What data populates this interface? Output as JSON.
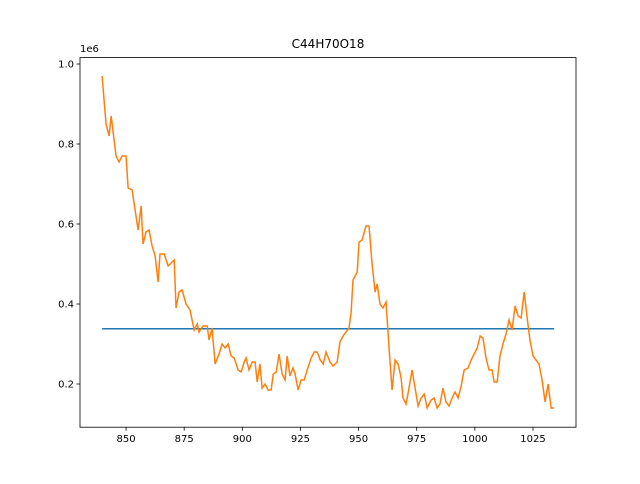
{
  "chart_data": {
    "type": "line",
    "title": "C44H70O18",
    "y_offset_label": "1e6",
    "xlim": [
      830.2,
      1043.5
    ],
    "xticks": [
      850,
      875,
      900,
      925,
      950,
      975,
      1000,
      1025
    ],
    "ylim": [
      92000,
      1016000
    ],
    "yticks": [
      {
        "value": 200000,
        "label": "0.2"
      },
      {
        "value": 400000,
        "label": "0.4"
      },
      {
        "value": 600000,
        "label": "0.6"
      },
      {
        "value": 800000,
        "label": "0.8"
      },
      {
        "value": 1000000,
        "label": "1.0"
      }
    ],
    "series": [
      {
        "color": "#1f77b4",
        "x": [
          839.7,
          1034.1
        ],
        "values": [
          338000,
          338000
        ]
      },
      {
        "color": "#ff7f0e",
        "x": [
          839.7,
          841.4,
          842.7,
          843.6,
          845.7,
          847.0,
          848.3,
          850.0,
          850.9,
          852.6,
          855.2,
          856.5,
          857.3,
          858.6,
          859.9,
          861.2,
          862.5,
          863.8,
          864.6,
          866.4,
          868.1,
          870.7,
          871.5,
          872.8,
          874.1,
          875.8,
          877.5,
          879.3,
          880.6,
          881.4,
          883.1,
          884.9,
          885.7,
          887.0,
          888.3,
          890.0,
          891.3,
          892.6,
          893.9,
          895.2,
          896.5,
          898.2,
          899.5,
          900.8,
          901.6,
          902.9,
          904.2,
          905.5,
          906.4,
          907.6,
          908.5,
          909.8,
          911.1,
          912.4,
          913.3,
          914.6,
          915.8,
          917.1,
          918.4,
          919.3,
          920.5,
          921.8,
          922.7,
          924.0,
          925.3,
          926.6,
          927.9,
          929.6,
          930.9,
          932.2,
          933.5,
          934.8,
          936.0,
          937.7,
          939.0,
          940.8,
          942.0,
          943.3,
          944.6,
          945.9,
          946.8,
          947.6,
          949.4,
          950.2,
          951.5,
          953.2,
          954.5,
          955.8,
          957.1,
          958.0,
          959.2,
          960.5,
          961.8,
          963.1,
          964.4,
          965.7,
          967.0,
          968.3,
          969.1,
          970.4,
          971.7,
          973.0,
          974.3,
          975.6,
          976.9,
          978.2,
          979.5,
          981.2,
          982.5,
          983.8,
          985.0,
          986.3,
          987.6,
          988.9,
          990.2,
          991.5,
          992.8,
          994.1,
          995.4,
          997.1,
          998.4,
          999.7,
          1001.0,
          1002.3,
          1003.5,
          1004.8,
          1006.1,
          1007.4,
          1008.3,
          1009.6,
          1010.8,
          1012.1,
          1013.4,
          1014.7,
          1016.0,
          1017.3,
          1018.6,
          1019.9,
          1021.2,
          1022.4,
          1023.7,
          1025.0,
          1026.3,
          1027.6,
          1028.9,
          1030.2,
          1031.5,
          1032.8,
          1034.1
        ],
        "values": [
          970000,
          850000,
          820000,
          870000,
          770000,
          755000,
          770000,
          770000,
          690000,
          685000,
          585000,
          645000,
          550000,
          580000,
          585000,
          545000,
          520000,
          455000,
          525000,
          525000,
          495000,
          510000,
          390000,
          430000,
          435000,
          400000,
          385000,
          335000,
          350000,
          330000,
          345000,
          345000,
          310000,
          340000,
          250000,
          275000,
          300000,
          290000,
          300000,
          270000,
          265000,
          235000,
          230000,
          255000,
          265000,
          235000,
          255000,
          255000,
          205000,
          250000,
          190000,
          200000,
          185000,
          185000,
          225000,
          230000,
          275000,
          225000,
          210000,
          270000,
          220000,
          240000,
          225000,
          185000,
          210000,
          210000,
          235000,
          265000,
          280000,
          280000,
          260000,
          250000,
          280000,
          255000,
          245000,
          255000,
          305000,
          320000,
          330000,
          340000,
          380000,
          460000,
          480000,
          555000,
          560000,
          595000,
          595000,
          500000,
          430000,
          450000,
          400000,
          390000,
          405000,
          290000,
          185000,
          260000,
          250000,
          215000,
          165000,
          150000,
          190000,
          235000,
          190000,
          145000,
          165000,
          175000,
          140000,
          160000,
          165000,
          140000,
          150000,
          190000,
          155000,
          145000,
          165000,
          180000,
          165000,
          195000,
          235000,
          240000,
          260000,
          275000,
          290000,
          320000,
          315000,
          265000,
          235000,
          235000,
          205000,
          205000,
          270000,
          300000,
          325000,
          360000,
          335000,
          395000,
          370000,
          365000,
          430000,
          370000,
          310000,
          270000,
          260000,
          250000,
          210000,
          155000,
          200000,
          140000,
          140000
        ]
      }
    ]
  }
}
